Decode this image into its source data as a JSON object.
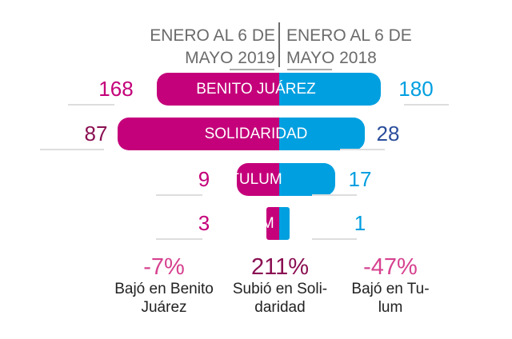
{
  "chart_data": {
    "type": "bar",
    "title": "",
    "series": [
      {
        "name": "ENERO AL 6 DE MAYO 2019",
        "values": [
          168,
          87,
          9,
          3
        ],
        "color": "#c4007a"
      },
      {
        "name": "ENERO AL 6 DE MAYO 2018",
        "values": [
          180,
          28,
          17,
          1
        ],
        "color": "#009fe0"
      }
    ],
    "categories": [
      "BENITO JUÁREZ",
      "SOLIDARIDAD",
      "TULUM",
      "UMM"
    ],
    "value_labels_left": [
      "168",
      "87",
      "9",
      "3"
    ],
    "value_labels_right": [
      "180",
      "28",
      "17",
      "1"
    ],
    "header_left": {
      "line1": "ENERO AL 6 DE",
      "line2": "MAYO 2019"
    },
    "header_right": {
      "line1": "ENERO AL 6 DE",
      "line2": "MAYO 2018"
    },
    "annotations": [
      {
        "pct": "-7%",
        "text1": "Bajó en Benito",
        "text2": "Juárez",
        "color": "#d6418f"
      },
      {
        "pct": "211%",
        "text1": "Subió en Soli-",
        "text2": "daridad",
        "color": "#8a0f52"
      },
      {
        "pct": "-47%",
        "text1": "Bajó en Tu-",
        "text2": "lum",
        "color": "#d6418f"
      }
    ]
  }
}
